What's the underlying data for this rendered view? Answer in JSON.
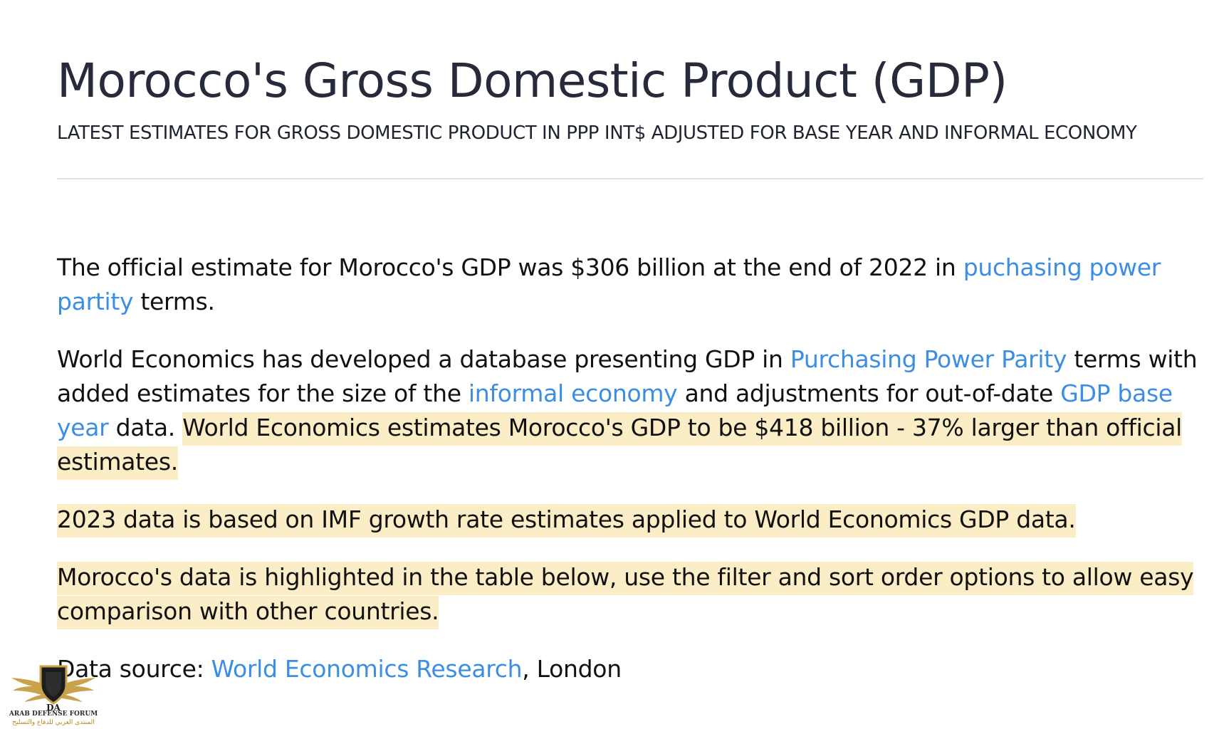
{
  "header": {
    "title": "Morocco's Gross Domestic Product (GDP)",
    "subtitle": "LATEST ESTIMATES FOR GROSS DOMESTIC PRODUCT IN PPP INT$ ADJUSTED FOR BASE YEAR AND INFORMAL ECONOMY"
  },
  "body": {
    "p1": {
      "text_before": "The official estimate for Morocco's GDP was $306 billion at the end of 2022 in ",
      "link": "puchasing power partity",
      "text_after": " terms."
    },
    "p2": {
      "text1": "World Economics has developed a database presenting GDP in ",
      "link1": "Purchasing Power Parity",
      "text2": " terms with added estimates for the size of the ",
      "link2": "informal economy",
      "text3": " and adjustments for out-of-date ",
      "link3": "GDP base year",
      "text4": " data. ",
      "highlight": "World Economics estimates Morocco's GDP to be $418 billion - 37% larger than official estimates."
    },
    "p3": {
      "highlight": "2023 data is based on IMF growth rate estimates applied to World Economics GDP data."
    },
    "p4": {
      "highlight": "Morocco's data is highlighted in the table below, use the filter and sort order options to allow easy comparison with other countries."
    },
    "p5": {
      "text_before": "Data source: ",
      "link": "World Economics Research",
      "text_after": ", London"
    }
  },
  "watermark": {
    "icon": "arab-defense-forum-logo-icon",
    "monogram": "DA",
    "caption": "ARAB DEFENSE FORUM",
    "caption_ar": "المنتدى العربي للدفاع والتسليح"
  },
  "colors": {
    "link": "#3b8ee3",
    "highlight": "#fbedc6",
    "title": "#262a3a"
  }
}
